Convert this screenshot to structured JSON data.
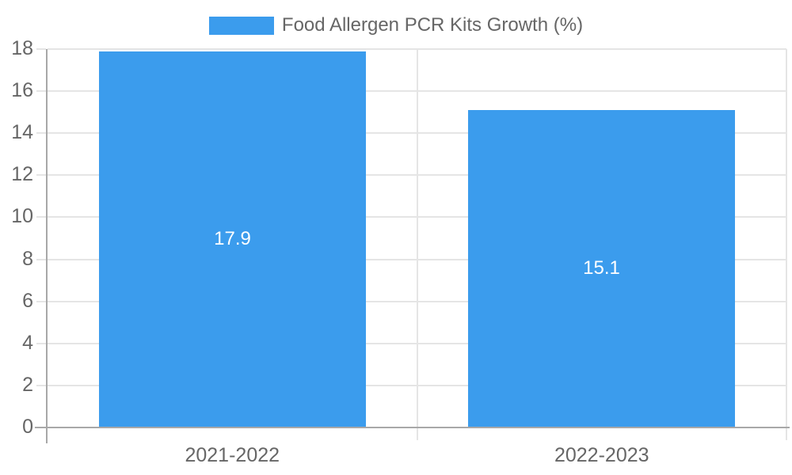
{
  "legend": {
    "label": "Food Allergen PCR Kits Growth (%)"
  },
  "chart_data": {
    "type": "bar",
    "title": "Food Allergen PCR Kits Growth (%)",
    "categories": [
      "2021-2022",
      "2022-2023"
    ],
    "series": [
      {
        "name": "Food Allergen PCR Kits Growth (%)",
        "values": [
          17.9,
          15.1
        ]
      }
    ],
    "data_labels": [
      "17.9",
      "15.1"
    ],
    "yticks": [
      0,
      2,
      4,
      6,
      8,
      10,
      12,
      14,
      16,
      18
    ],
    "ylim": [
      0,
      18
    ],
    "ytick_step": 2,
    "grid": true,
    "legend_position": "top",
    "colors": {
      "bar": "#3b9ced",
      "grid": "#e5e5e5",
      "axis": "#a8a8a8",
      "tick_text": "#666666",
      "data_label": "#ffffff",
      "background": "#ffffff"
    }
  }
}
